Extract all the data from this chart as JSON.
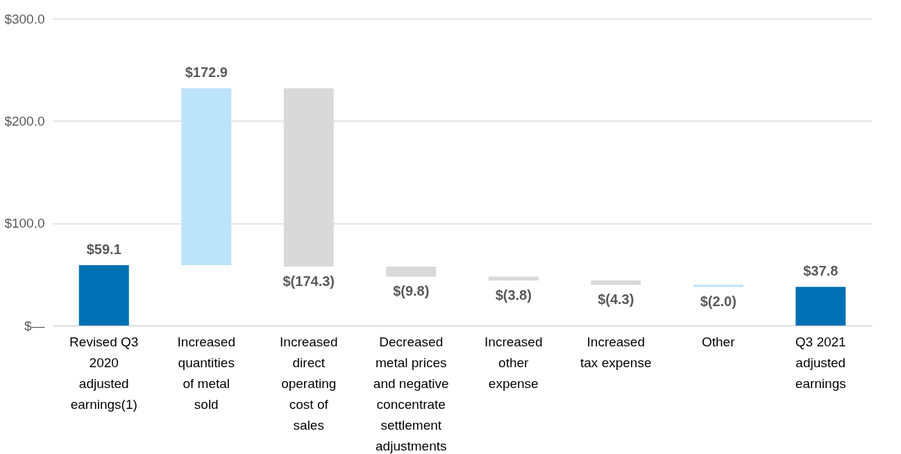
{
  "chart_data": {
    "type": "bar",
    "categories": [
      "Revised Q3 2020 adjusted earnings(1)",
      "Increased quantities of metal sold",
      "Increased direct operating cost of sales",
      "Decreased metal prices and negative concentrate settlement adjustments",
      "Increased other expense",
      "Increased tax expense",
      "Other",
      "Q3 2021 adjusted earnings"
    ],
    "values": [
      59.1,
      172.9,
      -174.3,
      -9.8,
      -3.8,
      -4.3,
      -2.0,
      37.8
    ],
    "base": [
      0,
      59.1,
      232.0,
      57.7,
      47.9,
      44.1,
      39.8,
      0
    ],
    "colors": [
      "#0070b4",
      "#bde3fb",
      "#d9d9d9",
      "#d9d9d9",
      "#d9d9d9",
      "#d9d9d9",
      "#bde3fb",
      "#0070b4"
    ],
    "value_labels": [
      "$59.1",
      "$172.9",
      "$(174.3)",
      "$(9.8)",
      "$(3.8)",
      "$(4.3)",
      "$(2.0)",
      "$37.8"
    ],
    "ylim": [
      0,
      300
    ],
    "yticks": [
      {
        "value": 0,
        "label": "$—"
      },
      {
        "value": 100,
        "label": "$100.0"
      },
      {
        "value": 200,
        "label": "$200.0"
      },
      {
        "value": 300,
        "label": "$300.0"
      }
    ],
    "grid": "y"
  }
}
